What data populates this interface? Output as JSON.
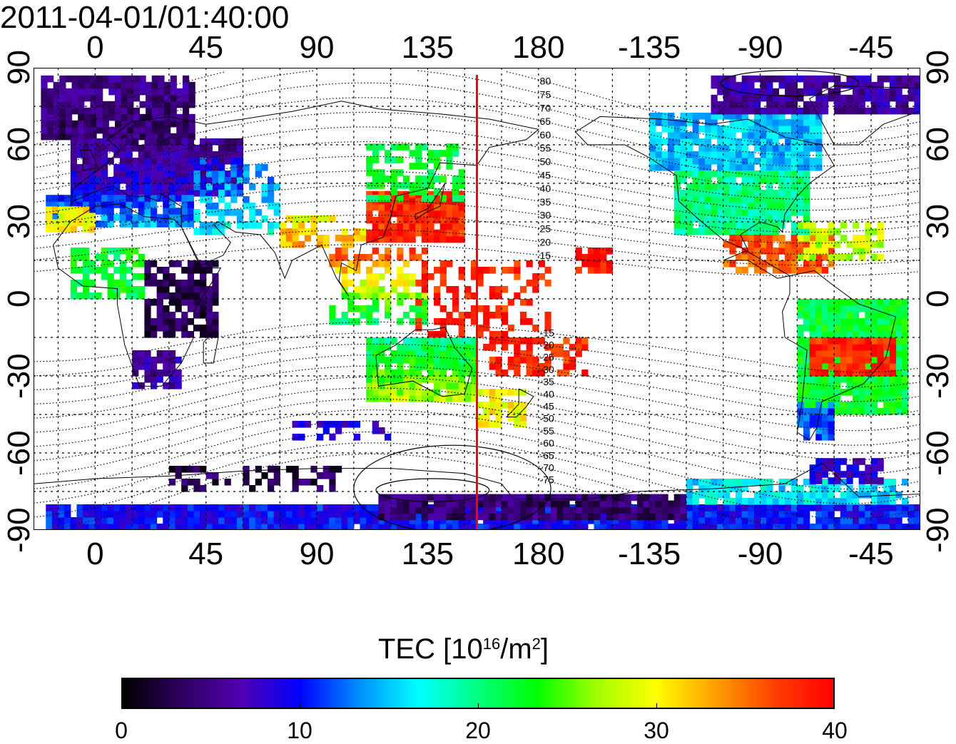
{
  "title": "2011-04-01/01:40:00",
  "lon_ticks": [
    {
      "value": 0,
      "label": "0"
    },
    {
      "value": 45,
      "label": "45"
    },
    {
      "value": 90,
      "label": "90"
    },
    {
      "value": 135,
      "label": "135"
    },
    {
      "value": 180,
      "label": "180"
    },
    {
      "value": 225,
      "label": "-135"
    },
    {
      "value": 270,
      "label": "-90"
    },
    {
      "value": 315,
      "label": "-45"
    }
  ],
  "lat_ticks": [
    {
      "value": 90,
      "label": "90"
    },
    {
      "value": 60,
      "label": "60"
    },
    {
      "value": 30,
      "label": "30"
    },
    {
      "value": 0,
      "label": "0"
    },
    {
      "value": -30,
      "label": "-30"
    },
    {
      "value": -60,
      "label": "-60"
    },
    {
      "value": -90,
      "label": "-90"
    }
  ],
  "map": {
    "lon_range": [
      -25,
      335
    ],
    "lat_range": [
      -90,
      90
    ],
    "meridian_lon": 155,
    "meridian_color": "#ff0000",
    "contour_labels": [
      "80",
      "75",
      "70",
      "65",
      "60",
      "55",
      "50",
      "45",
      "40",
      "35",
      "30",
      "25",
      "20",
      "15",
      "-15",
      "-20",
      "-25",
      "-30",
      "-35",
      "-40",
      "-45",
      "-50",
      "-55",
      "-60",
      "-65",
      "-70",
      "-75"
    ]
  },
  "colorbar": {
    "label_prefix": "TEC  [10",
    "label_exp": "16",
    "label_mid": "/m",
    "label_exp2": "2",
    "label_suffix": "]",
    "min": 0,
    "max": 40,
    "ticks": [
      "0",
      "10",
      "20",
      "30",
      "40"
    ],
    "colors": [
      "#000000",
      "#300060",
      "#5000b0",
      "#0000ff",
      "#0090ff",
      "#00ffff",
      "#00ff80",
      "#00ff00",
      "#a0ff00",
      "#ffff00",
      "#ffa000",
      "#ff4000",
      "#ff0000"
    ]
  }
}
